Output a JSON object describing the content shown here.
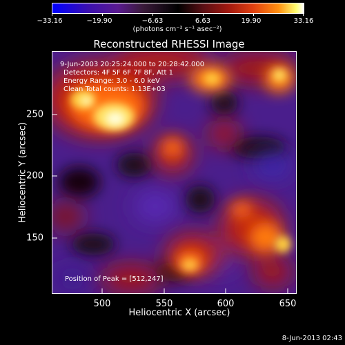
{
  "colorbar": {
    "tick_labels": [
      "−33.16",
      "−19.90",
      "−6.63",
      "6.63",
      "19.90",
      "33.16"
    ],
    "unit_label": "(photons cm⁻² s⁻¹ asec⁻²)",
    "colors": [
      "#0000ff",
      "#5a1a90",
      "#000000",
      "#a0180f",
      "#ff9010",
      "#ffffff"
    ]
  },
  "image": {
    "title": "Reconstructed RHESSI Image",
    "annotations": {
      "time_range": "9-Jun-2003 20:25:24.000 to 20:28:42.000",
      "detectors": "Detectors: 4F 5F 6F 7F 8F, Att 1",
      "energy_range": "Energy Range: 3.0 - 6.0 keV",
      "counts": "Clean   Total counts: 1.13E+03",
      "peak": "Position of Peak = [512,247]"
    },
    "x_axis": {
      "label": "Heliocentric X (arcsec)",
      "ticks": [
        "500",
        "550",
        "600",
        "650"
      ]
    },
    "y_axis": {
      "label": "Heliocentric Y (arcsec)",
      "ticks": [
        "250",
        "200",
        "150"
      ]
    },
    "x_range": [
      462,
      654
    ],
    "y_range": [
      105,
      295
    ]
  },
  "timestamp": "8-Jun-2013 02:43"
}
